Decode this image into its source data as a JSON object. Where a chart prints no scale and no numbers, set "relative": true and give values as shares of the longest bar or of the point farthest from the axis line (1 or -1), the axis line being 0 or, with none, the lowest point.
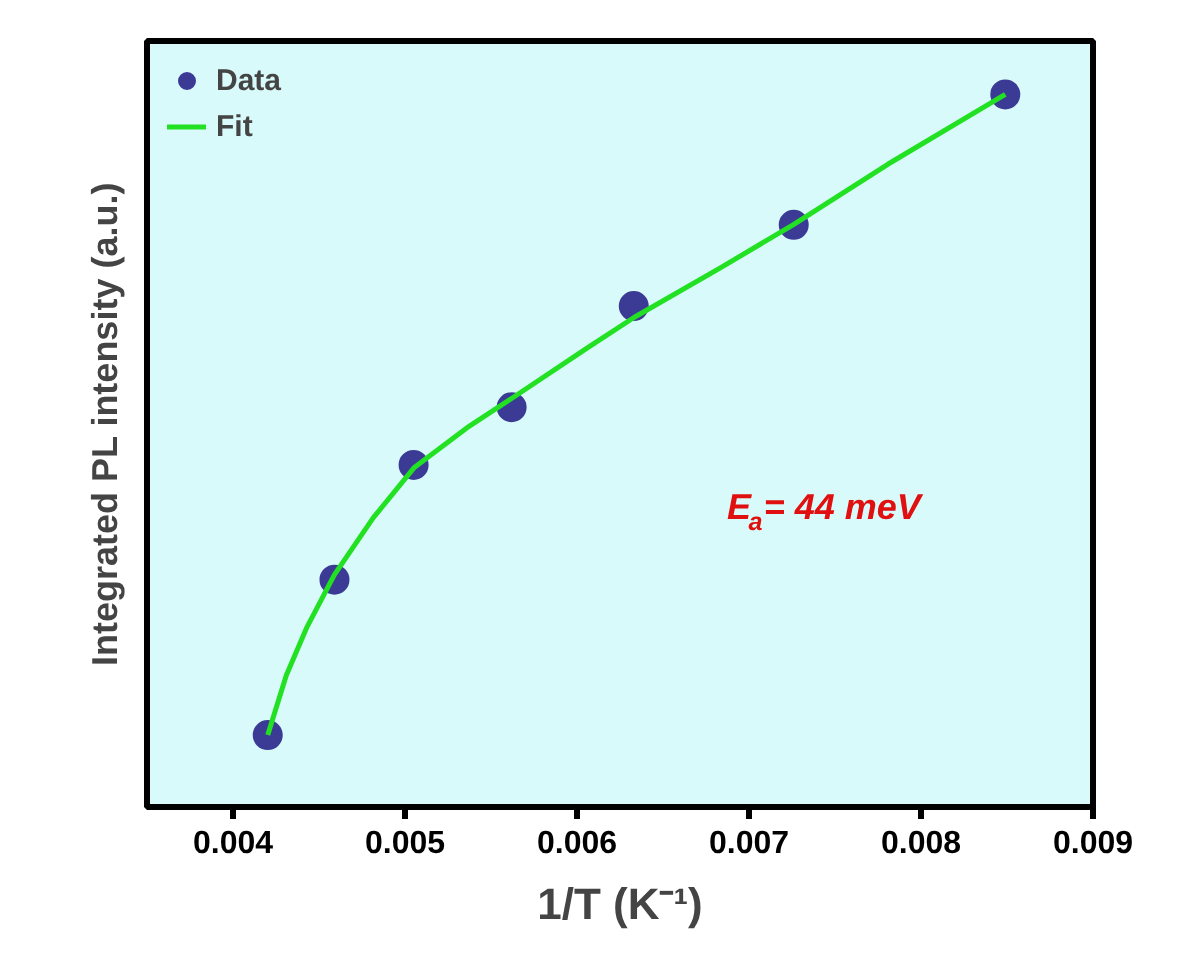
{
  "chart_data": {
    "type": "scatter",
    "relative": true,
    "xlabel": "1/T (K⁻¹)",
    "ylabel": "Integrated PL intensity (a.u.)",
    "xlim": [
      0.0035,
      0.009
    ],
    "xticks": [
      0.004,
      0.005,
      0.006,
      0.007,
      0.008,
      0.009
    ],
    "tick_labels": "x",
    "grid": false,
    "legend": "top left",
    "annotations": [
      "E$_{a}$= 44 meV"
    ],
    "series": [
      {
        "name": "Data",
        "marker": "circle",
        "color": "#3b3b96",
        "x": [
          0.004202,
          0.00459,
          0.00505,
          0.00562,
          0.00633,
          0.00726,
          0.00849
        ],
        "values": [
          0.101,
          0.319,
          0.48,
          0.561,
          0.703,
          0.817,
          1.0
        ]
      },
      {
        "name": "Fit",
        "type": "line",
        "line_style": "solid",
        "color": "#22e022",
        "x": [
          0.004202,
          0.00431,
          0.004427,
          0.00459,
          0.004816,
          0.005052,
          0.005359,
          0.005624,
          0.006058,
          0.006331,
          0.006836,
          0.007256,
          0.007807,
          0.00849
        ],
        "values": [
          0.101,
          0.185,
          0.251,
          0.326,
          0.406,
          0.476,
          0.532,
          0.574,
          0.644,
          0.687,
          0.757,
          0.817,
          0.902,
          1.0
        ]
      }
    ]
  }
}
